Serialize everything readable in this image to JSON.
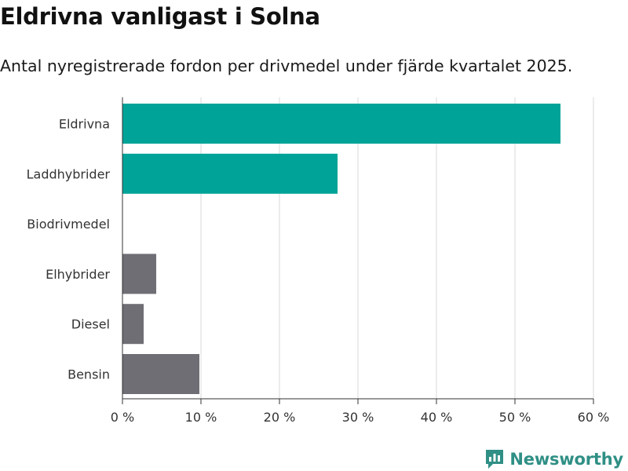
{
  "header": {
    "title": "Eldrivna vanligast i Solna",
    "subtitle": "Antal nyregistrerade fordon per drivmedel under fjärde kvartalet 2025."
  },
  "chart_data": {
    "type": "bar",
    "orientation": "horizontal",
    "title": "Eldrivna vanligast i Solna",
    "subtitle": "Antal nyregistrerade fordon per drivmedel under fjärde kvartalet 2025.",
    "categories": [
      "Eldrivna",
      "Laddhybrider",
      "Biodrivmedel",
      "Elhybrider",
      "Diesel",
      "Bensin"
    ],
    "values": [
      55.8,
      27.4,
      0,
      4.3,
      2.7,
      9.8
    ],
    "unit": "%",
    "bar_colors": [
      "#00a398",
      "#00a398",
      "#6f6e75",
      "#6f6e75",
      "#6f6e75",
      "#6f6e75"
    ],
    "xlim": [
      0,
      60
    ],
    "xticks": [
      0,
      10,
      20,
      30,
      40,
      50,
      60
    ],
    "xtick_labels": [
      "0 %",
      "10 %",
      "20 %",
      "30 %",
      "40 %",
      "50 %",
      "60 %"
    ],
    "xlabel": "",
    "ylabel": "",
    "grid": true,
    "legend": "none"
  },
  "colors": {
    "highlight": "#00a398",
    "base": "#6f6e75",
    "grid": "#d9d9d9",
    "axis": "#333333",
    "brand": "#2f8f85"
  },
  "footer": {
    "brand": "Newsworthy",
    "logo_icon": "newsworthy-logo-icon"
  }
}
